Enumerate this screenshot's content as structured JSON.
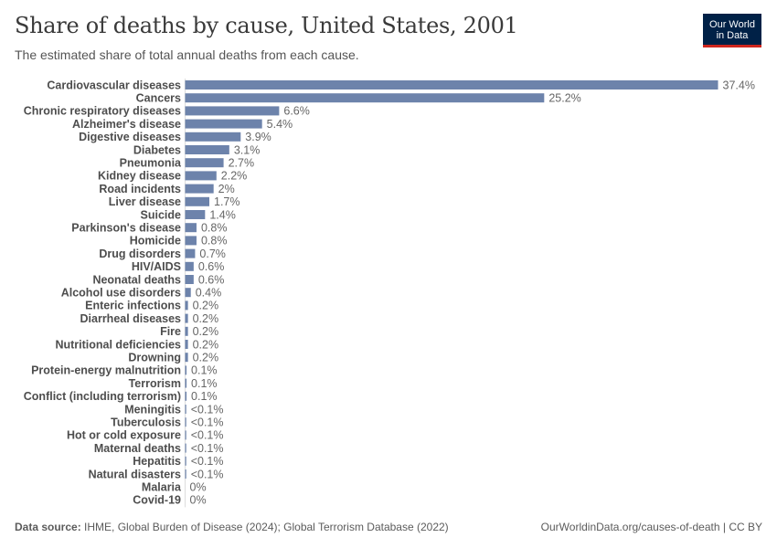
{
  "header": {
    "title": "Share of deaths by cause, United States, 2001",
    "subtitle": "The estimated share of total annual deaths from each cause."
  },
  "logo": {
    "line1": "Our World",
    "line2": "in Data"
  },
  "footer": {
    "source_label": "Data source:",
    "source_text": "IHME, Global Burden of Disease (2024); Global Terrorism Database (2022)",
    "link_text": "OurWorldinData.org/causes-of-death | CC BY"
  },
  "colors": {
    "bar": "#6d83ab",
    "logo_bg": "#002147",
    "logo_accent": "#ce261e"
  },
  "chart_data": {
    "type": "bar",
    "orientation": "horizontal",
    "unit": "%",
    "xlim": [
      0,
      37.4
    ],
    "categories": [
      "Cardiovascular diseases",
      "Cancers",
      "Chronic respiratory diseases",
      "Alzheimer's disease",
      "Digestive diseases",
      "Diabetes",
      "Pneumonia",
      "Kidney disease",
      "Road incidents",
      "Liver disease",
      "Suicide",
      "Parkinson's disease",
      "Homicide",
      "Drug disorders",
      "HIV/AIDS",
      "Neonatal deaths",
      "Alcohol use disorders",
      "Enteric infections",
      "Diarrheal diseases",
      "Fire",
      "Nutritional deficiencies",
      "Drowning",
      "Protein-energy malnutrition",
      "Terrorism",
      "Conflict (including terrorism)",
      "Meningitis",
      "Tuberculosis",
      "Hot or cold exposure",
      "Maternal deaths",
      "Hepatitis",
      "Natural disasters",
      "Malaria",
      "Covid-19"
    ],
    "values": [
      37.4,
      25.2,
      6.6,
      5.4,
      3.9,
      3.1,
      2.7,
      2.2,
      2.0,
      1.7,
      1.4,
      0.8,
      0.8,
      0.7,
      0.6,
      0.6,
      0.4,
      0.2,
      0.2,
      0.2,
      0.2,
      0.2,
      0.1,
      0.1,
      0.1,
      0.04,
      0.04,
      0.04,
      0.03,
      0.03,
      0.02,
      0,
      0
    ],
    "value_labels": [
      "37.4%",
      "25.2%",
      "6.6%",
      "5.4%",
      "3.9%",
      "3.1%",
      "2.7%",
      "2.2%",
      "2%",
      "1.7%",
      "1.4%",
      "0.8%",
      "0.8%",
      "0.7%",
      "0.6%",
      "0.6%",
      "0.4%",
      "0.2%",
      "0.2%",
      "0.2%",
      "0.2%",
      "0.2%",
      "0.1%",
      "0.1%",
      "0.1%",
      "<0.1%",
      "<0.1%",
      "<0.1%",
      "<0.1%",
      "<0.1%",
      "<0.1%",
      "0%",
      "0%"
    ]
  }
}
